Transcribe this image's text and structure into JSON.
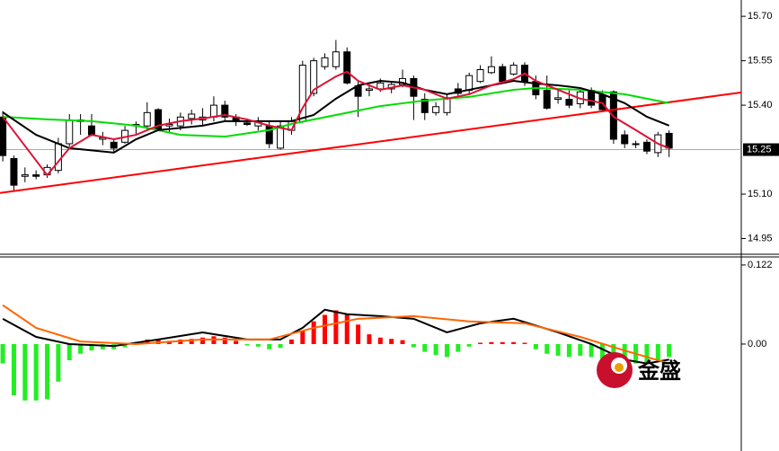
{
  "chart_data": [
    {
      "type": "candlestick",
      "open": [
        15.36,
        15.22,
        15.16,
        15.165,
        15.165,
        15.18,
        15.27,
        15.345,
        15.33,
        15.285,
        15.275,
        15.275,
        15.33,
        15.33,
        15.385,
        15.33,
        15.33,
        15.355,
        15.35,
        15.36,
        15.4,
        15.36,
        15.34,
        15.33,
        15.33,
        15.255,
        15.315,
        15.345,
        15.44,
        15.53,
        15.53,
        15.58,
        15.465,
        15.45,
        15.455,
        15.455,
        15.47,
        15.49,
        15.42,
        15.375,
        15.375,
        15.455,
        15.45,
        15.48,
        15.51,
        15.53,
        15.505,
        15.535,
        15.48,
        15.45,
        15.42,
        15.42,
        15.405,
        15.45,
        15.435,
        15.445,
        15.3,
        15.27,
        15.275,
        15.24,
        15.305
      ],
      "high": [
        15.38,
        15.23,
        15.19,
        15.18,
        15.2,
        15.29,
        15.37,
        15.37,
        15.37,
        15.31,
        15.285,
        15.33,
        15.345,
        15.41,
        15.39,
        15.355,
        15.375,
        15.385,
        15.39,
        15.43,
        15.415,
        15.37,
        15.355,
        15.36,
        15.345,
        15.345,
        15.36,
        15.55,
        15.56,
        15.575,
        15.62,
        15.595,
        15.48,
        15.47,
        15.49,
        15.48,
        15.52,
        15.5,
        15.44,
        15.41,
        15.435,
        15.475,
        15.51,
        15.535,
        15.565,
        15.54,
        15.545,
        15.545,
        15.5,
        15.5,
        15.45,
        15.45,
        15.45,
        15.46,
        15.45,
        15.45,
        15.315,
        15.28,
        15.285,
        15.31,
        15.315
      ],
      "low": [
        15.21,
        15.11,
        15.14,
        15.15,
        15.155,
        15.17,
        15.26,
        15.3,
        15.295,
        15.265,
        15.24,
        15.27,
        15.3,
        15.315,
        15.315,
        15.305,
        15.315,
        15.335,
        15.33,
        15.345,
        15.345,
        15.33,
        15.33,
        15.315,
        15.255,
        15.25,
        15.3,
        15.34,
        15.43,
        15.52,
        15.52,
        15.47,
        15.36,
        15.43,
        15.445,
        15.44,
        15.46,
        15.35,
        15.35,
        15.365,
        15.365,
        15.43,
        15.435,
        15.475,
        15.505,
        15.475,
        15.5,
        15.465,
        15.42,
        15.385,
        15.405,
        15.39,
        15.39,
        15.39,
        15.38,
        15.27,
        15.255,
        15.255,
        15.235,
        15.225,
        15.225
      ],
      "close": [
        15.23,
        15.13,
        15.165,
        15.16,
        15.19,
        15.27,
        15.35,
        15.35,
        15.3,
        15.29,
        15.255,
        15.315,
        15.335,
        15.375,
        15.315,
        15.335,
        15.36,
        15.37,
        15.36,
        15.4,
        15.36,
        15.345,
        15.335,
        15.345,
        15.27,
        15.33,
        15.345,
        15.535,
        15.55,
        15.56,
        15.58,
        15.475,
        15.43,
        15.455,
        15.475,
        15.47,
        15.49,
        15.43,
        15.375,
        15.395,
        15.425,
        15.44,
        15.5,
        15.52,
        15.53,
        15.48,
        15.535,
        15.48,
        15.435,
        15.39,
        15.425,
        15.4,
        15.445,
        15.4,
        15.385,
        15.285,
        15.27,
        15.268,
        15.245,
        15.3,
        15.255
      ],
      "up_color": "#ffffff",
      "down_color": "#000000",
      "xlim": [
        -0.25,
        66.5
      ],
      "ylim": [
        14.9,
        15.755
      ],
      "yticks": [
        {
          "value": 15.7,
          "label": "15.70"
        },
        15.55,
        {
          "value": 15.4,
          "label": "15.40"
        },
        {
          "value": 15.1,
          "label": "15.10"
        },
        14.95
      ],
      "price_line": 15.25,
      "series": [
        {
          "color": "#ff0000",
          "x": [
            -0.25,
            66.5
          ],
          "values": [
            15.104,
            15.443
          ]
        },
        {
          "color": "#00dd00",
          "x": [
            0,
            4,
            8,
            12,
            16,
            20,
            24,
            26,
            30,
            34,
            38,
            42,
            46,
            48,
            52,
            56,
            60
          ],
          "values": [
            15.361,
            15.352,
            15.346,
            15.331,
            15.3,
            15.294,
            15.316,
            15.337,
            15.367,
            15.397,
            15.416,
            15.428,
            15.452,
            15.458,
            15.452,
            15.437,
            15.407
          ]
        },
        {
          "color": "#000000",
          "x": [
            0,
            3,
            6,
            10,
            12,
            14,
            18,
            20,
            26,
            28,
            30,
            32,
            34,
            36,
            38,
            40,
            42,
            44,
            46,
            48,
            50,
            52,
            54,
            56,
            58,
            60
          ],
          "values": [
            15.376,
            15.3,
            15.255,
            15.24,
            15.285,
            15.316,
            15.331,
            15.346,
            15.346,
            15.367,
            15.422,
            15.467,
            15.482,
            15.476,
            15.452,
            15.437,
            15.452,
            15.467,
            15.482,
            15.473,
            15.467,
            15.458,
            15.437,
            15.407,
            15.361,
            15.331
          ]
        },
        {
          "color": "#dd1133",
          "x": [
            0,
            4,
            6,
            8,
            10,
            12,
            14,
            16,
            18,
            20,
            22,
            24,
            26,
            27,
            28,
            30,
            31,
            32,
            34,
            36,
            38,
            40,
            42,
            44,
            46,
            47,
            48,
            50,
            52,
            54,
            55,
            57,
            59,
            60
          ],
          "values": [
            15.361,
            15.164,
            15.255,
            15.3,
            15.285,
            15.3,
            15.331,
            15.346,
            15.355,
            15.367,
            15.352,
            15.331,
            15.316,
            15.391,
            15.452,
            15.497,
            15.513,
            15.482,
            15.452,
            15.467,
            15.452,
            15.422,
            15.437,
            15.467,
            15.488,
            15.507,
            15.482,
            15.452,
            15.422,
            15.407,
            15.361,
            15.316,
            15.27,
            15.255
          ]
        }
      ]
    },
    {
      "type": "macd",
      "values": [
        -0.03,
        -0.079,
        -0.087,
        -0.087,
        -0.085,
        -0.058,
        -0.025,
        -0.015,
        -0.01,
        -0.008,
        -0.008,
        -0.005,
        0.002,
        0.007,
        0.007,
        0.005,
        0.007,
        0.008,
        0.01,
        0.012,
        0.01,
        0.005,
        -0.002,
        -0.004,
        -0.008,
        -0.006,
        0.007,
        0.02,
        0.035,
        0.045,
        0.052,
        0.045,
        0.03,
        0.015,
        0.01,
        0.008,
        0.006,
        -0.005,
        -0.012,
        -0.017,
        -0.02,
        -0.012,
        -0.004,
        0.002,
        0.003,
        0.003,
        0.003,
        0.002,
        -0.008,
        -0.015,
        -0.018,
        -0.02,
        -0.018,
        -0.02,
        -0.025,
        -0.035,
        -0.035,
        -0.03,
        -0.028,
        -0.025,
        -0.02
      ],
      "pos_color": "#ff0000",
      "neg_color": "#22ee22",
      "xlim": [
        -0.25,
        66.5
      ],
      "ylim": [
        -0.165,
        0.133
      ],
      "yticks": [
        0.122,
        {
          "value": 0,
          "label": "0.00"
        }
      ],
      "series": [
        {
          "color": "#000000",
          "x": [
            0,
            3,
            6,
            10,
            14,
            18,
            22,
            25,
            27,
            29,
            31,
            34,
            37,
            40,
            43,
            46,
            50,
            53,
            56,
            58,
            60
          ],
          "values": [
            0.039,
            0.011,
            0,
            -0.003,
            0.007,
            0.018,
            0.007,
            0.007,
            0.025,
            0.053,
            0.046,
            0.043,
            0.039,
            0.018,
            0.032,
            0.039,
            0.018,
            0,
            -0.024,
            -0.03,
            -0.024
          ]
        },
        {
          "color": "#ff6600",
          "x": [
            0,
            3,
            7,
            12,
            18,
            24,
            28,
            32,
            37,
            42,
            47,
            52,
            56,
            60
          ],
          "values": [
            0.06,
            0.025,
            0.004,
            0,
            0.007,
            0.007,
            0.025,
            0.039,
            0.043,
            0.035,
            0.032,
            0.011,
            -0.01,
            -0.03
          ]
        }
      ]
    }
  ],
  "watermark": "金盛"
}
